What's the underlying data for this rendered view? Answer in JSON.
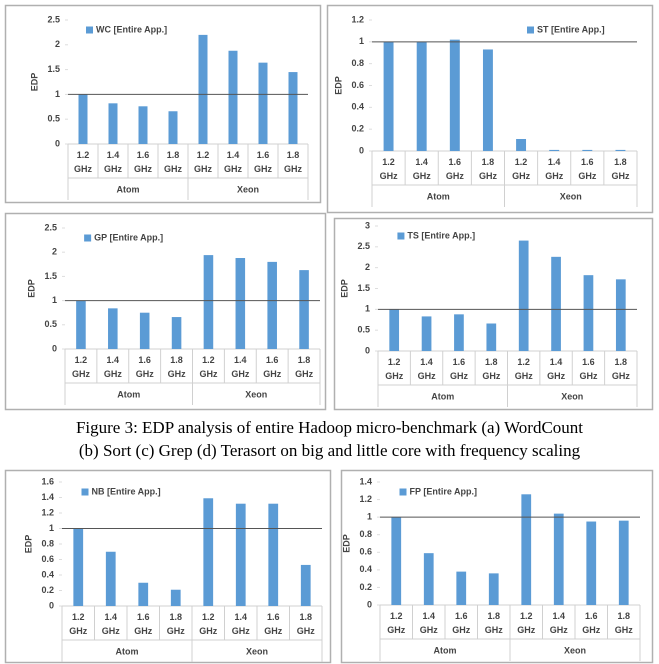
{
  "chart_data": [
    {
      "type": "bar",
      "y_label": "EDP",
      "legend": "upper left",
      "reference_line": 1,
      "categories": [
        "1.2 GHz",
        "1.4 GHz",
        "1.6 GHz",
        "1.8 GHz",
        "1.2 GHz",
        "1.4 GHz",
        "1.6 GHz",
        "1.8 GHz"
      ],
      "groups": [
        "Atom",
        "Xeon"
      ],
      "series": [
        {
          "name": "WC [Entire App.]",
          "color": "#5b9bd5",
          "values": [
            1.0,
            0.82,
            0.76,
            0.66,
            2.2,
            1.88,
            1.64,
            1.45
          ]
        }
      ],
      "ylim": [
        0,
        2.5
      ],
      "yticks": [
        0,
        0.5,
        1,
        1.5,
        2,
        2.5
      ]
    },
    {
      "type": "bar",
      "y_label": "EDP",
      "legend": "upper right",
      "reference_line": 1,
      "categories": [
        "1.2 GHz",
        "1.4 GHz",
        "1.6 GHz",
        "1.8 GHz",
        "1.2 GHz",
        "1.4 GHz",
        "1.6 GHz",
        "1.8 GHz"
      ],
      "groups": [
        "Atom",
        "Xeon"
      ],
      "series": [
        {
          "name": "ST [Entire App.]",
          "color": "#5b9bd5",
          "values": [
            1.0,
            1.0,
            1.02,
            0.93,
            0.11,
            0.01,
            0.01,
            0.01
          ]
        }
      ],
      "ylim": [
        0,
        1.2
      ],
      "yticks": [
        0,
        0.2,
        0.4,
        0.6,
        0.8,
        1,
        1.2
      ]
    },
    {
      "type": "bar",
      "y_label": "EDP",
      "legend": "upper left",
      "reference_line": 1,
      "categories": [
        "1.2 GHz",
        "1.4 GHz",
        "1.6 GHz",
        "1.8 GHz",
        "1.2 GHz",
        "1.4 GHz",
        "1.6 GHz",
        "1.8 GHz"
      ],
      "groups": [
        "Atom",
        "Xeon"
      ],
      "series": [
        {
          "name": "GP [Entire App.]",
          "color": "#5b9bd5",
          "values": [
            1.0,
            0.84,
            0.75,
            0.66,
            1.94,
            1.88,
            1.8,
            1.63
          ]
        }
      ],
      "ylim": [
        0,
        2.5
      ],
      "yticks": [
        0,
        0.5,
        1,
        1.5,
        2,
        2.5
      ]
    },
    {
      "type": "bar",
      "y_label": "EDP",
      "legend": "upper left",
      "reference_line": 1,
      "categories": [
        "1.2 GHz",
        "1.4 GHz",
        "1.6 GHz",
        "1.8 GHz",
        "1.2 GHz",
        "1.4 GHz",
        "1.6 GHz",
        "1.8 GHz"
      ],
      "groups": [
        "Atom",
        "Xeon"
      ],
      "series": [
        {
          "name": "TS [Entire App.]",
          "color": "#5b9bd5",
          "values": [
            1.0,
            0.83,
            0.88,
            0.66,
            2.65,
            2.26,
            1.82,
            1.72
          ]
        }
      ],
      "ylim": [
        0,
        3
      ],
      "yticks": [
        0,
        0.5,
        1,
        1.5,
        2,
        2.5,
        3
      ]
    },
    {
      "type": "bar",
      "y_label": "EDP",
      "legend": "upper left",
      "reference_line": 1,
      "categories": [
        "1.2 GHz",
        "1.4 GHz",
        "1.6 GHz",
        "1.8 GHz",
        "1.2 GHz",
        "1.4 GHz",
        "1.6 GHz",
        "1.8 GHz"
      ],
      "groups": [
        "Atom",
        "Xeon"
      ],
      "series": [
        {
          "name": "NB [Entire App.]",
          "color": "#5b9bd5",
          "values": [
            1.0,
            0.7,
            0.3,
            0.21,
            1.39,
            1.32,
            1.32,
            0.53
          ]
        }
      ],
      "ylim": [
        0,
        1.6
      ],
      "yticks": [
        0,
        0.2,
        0.4,
        0.6,
        0.8,
        1,
        1.2,
        1.4,
        1.6
      ]
    },
    {
      "type": "bar",
      "y_label": "EDP",
      "legend": "upper left",
      "reference_line": 1,
      "categories": [
        "1.2 GHz",
        "1.4 GHz",
        "1.6 GHz",
        "1.8 GHz",
        "1.2 GHz",
        "1.4 GHz",
        "1.6 GHz",
        "1.8 GHz"
      ],
      "groups": [
        "Atom",
        "Xeon"
      ],
      "series": [
        {
          "name": "FP [Entire App.]",
          "color": "#5b9bd5",
          "values": [
            1.0,
            0.59,
            0.38,
            0.36,
            1.26,
            1.04,
            0.95,
            0.96
          ]
        }
      ],
      "ylim": [
        0,
        1.4
      ],
      "yticks": [
        0,
        0.2,
        0.4,
        0.6,
        0.8,
        1,
        1.2,
        1.4
      ]
    }
  ],
  "caption": [
    "Figure 3: EDP analysis of entire Hadoop micro-benchmark (a) WordCount",
    "(b) Sort (c) Grep (d) Terasort on big and little core with frequency scaling"
  ]
}
